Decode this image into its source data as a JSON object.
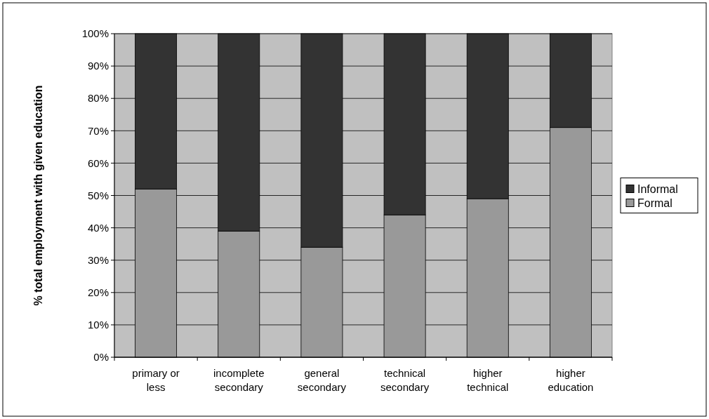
{
  "chart_data": {
    "type": "bar",
    "stacked": true,
    "ylabel": "% total employment with given education",
    "categories": [
      "primary or less",
      "incomplete secondary",
      "general secondary",
      "technical secondary",
      "higher technical",
      "higher education"
    ],
    "series": [
      {
        "name": "Formal",
        "color": "#999999",
        "values": [
          52,
          39,
          34,
          44,
          49,
          71
        ]
      },
      {
        "name": "Informal",
        "color": "#333333",
        "values": [
          48,
          61,
          66,
          56,
          51,
          29
        ]
      }
    ],
    "ylim": [
      0,
      100
    ],
    "yticks": [
      {
        "value": 0,
        "label": "0%"
      },
      {
        "value": 10,
        "label": "10%"
      },
      {
        "value": 20,
        "label": "20%"
      },
      {
        "value": 30,
        "label": "30%"
      },
      {
        "value": 40,
        "label": "40%"
      },
      {
        "value": 50,
        "label": "50%"
      },
      {
        "value": 60,
        "label": "60%"
      },
      {
        "value": 70,
        "label": "70%"
      },
      {
        "value": 80,
        "label": "80%"
      },
      {
        "value": 90,
        "label": "90%"
      },
      {
        "value": 100,
        "label": "100%"
      }
    ],
    "grid": "y",
    "legend": "right"
  }
}
